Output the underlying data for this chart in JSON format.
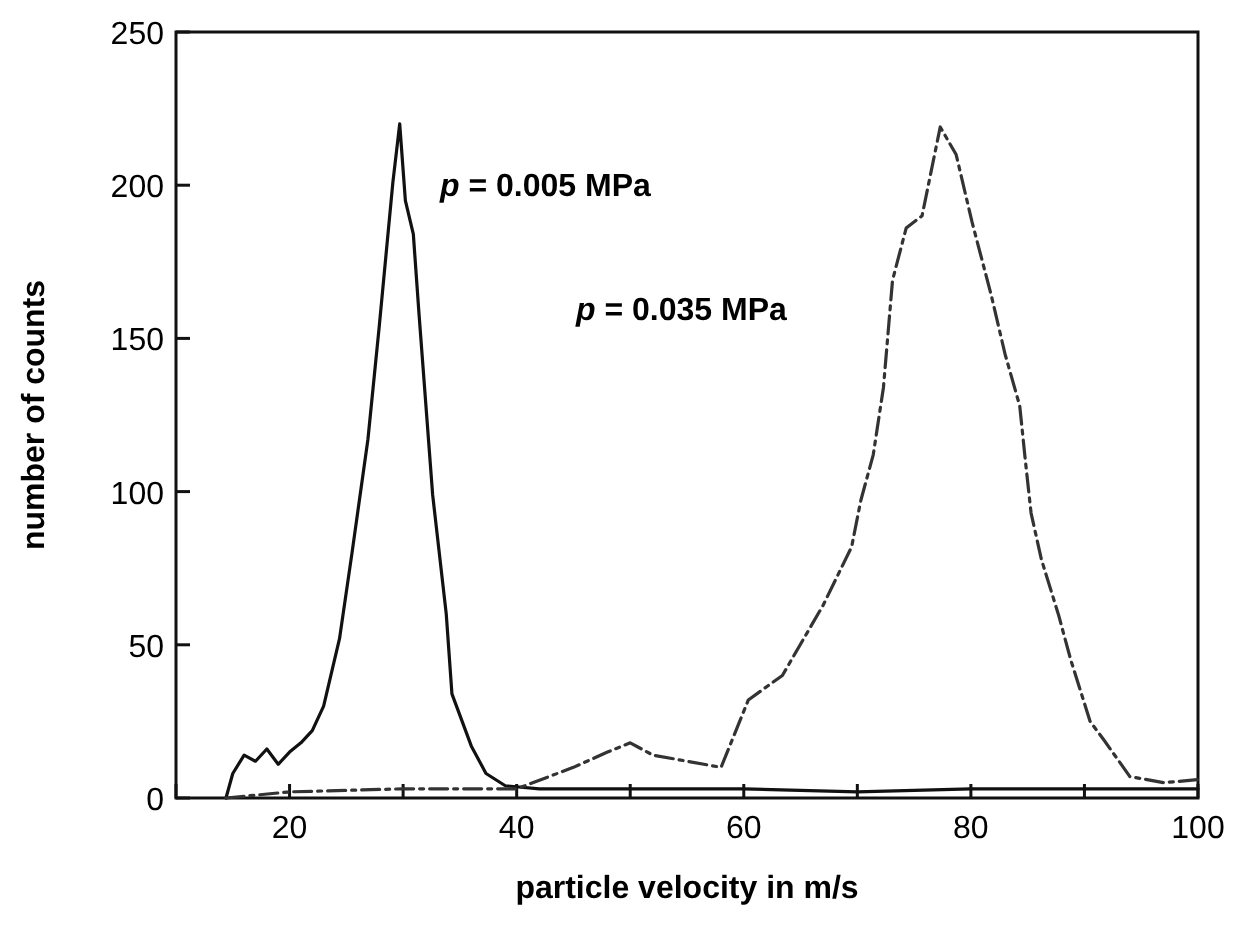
{
  "chart_data": {
    "type": "line",
    "xlabel": "particle velocity in m/s",
    "ylabel": "number of counts",
    "xlim": [
      10,
      100
    ],
    "ylim": [
      0,
      250
    ],
    "xticks": [
      {
        "value": 10,
        "label": null
      },
      20,
      {
        "value": 30,
        "label": null
      },
      40,
      {
        "value": 50,
        "label": null
      },
      60,
      {
        "value": 70,
        "label": null
      },
      80,
      {
        "value": 90,
        "label": null
      },
      100
    ],
    "yticks": [
      0,
      50,
      100,
      150,
      200,
      250
    ],
    "grid": false,
    "marker": "none",
    "series": [
      {
        "color": "#111111",
        "line_style": "solid",
        "x": [
          14.4,
          15,
          16,
          17,
          18,
          19,
          20,
          21,
          22,
          23,
          24.4,
          25.5,
          26.9,
          27.9,
          29.1,
          29.7,
          30.2,
          30.9,
          31.4,
          32.6,
          33.8,
          34.3,
          36,
          37.3,
          39,
          42,
          50,
          60,
          70,
          80,
          90,
          100
        ],
        "values": [
          0,
          8,
          14,
          12,
          16,
          11,
          15,
          18,
          22,
          30,
          52,
          80,
          117,
          154,
          201,
          220,
          195,
          184,
          158,
          99,
          60,
          34,
          17,
          8,
          4,
          3,
          3,
          3,
          2,
          3,
          3,
          3
        ]
      },
      {
        "color": "#333333",
        "line_style": "dashed",
        "x": [
          14.4,
          20,
          30,
          40,
          45,
          48,
          50,
          52,
          55,
          58,
          60.4,
          63.4,
          67,
          69.5,
          70.3,
          71.4,
          72.3,
          73.1,
          74.3,
          75.7,
          77.3,
          78.7,
          80.1,
          81.8,
          83,
          84.3,
          84.8,
          85.3,
          86.2,
          87.7,
          88.8,
          90.5,
          91.7,
          94,
          97,
          100
        ],
        "values": [
          0,
          2,
          3,
          3,
          10,
          15,
          18,
          14,
          12,
          10,
          32,
          40,
          63,
          82,
          97,
          112,
          134,
          169,
          186,
          190,
          219,
          210,
          188,
          164,
          145,
          128,
          110,
          93,
          78,
          60,
          45,
          25,
          19,
          7,
          5,
          6
        ]
      }
    ],
    "annotations": [
      "p = 0.005 MPa",
      "p = 0.035 MPa"
    ]
  }
}
